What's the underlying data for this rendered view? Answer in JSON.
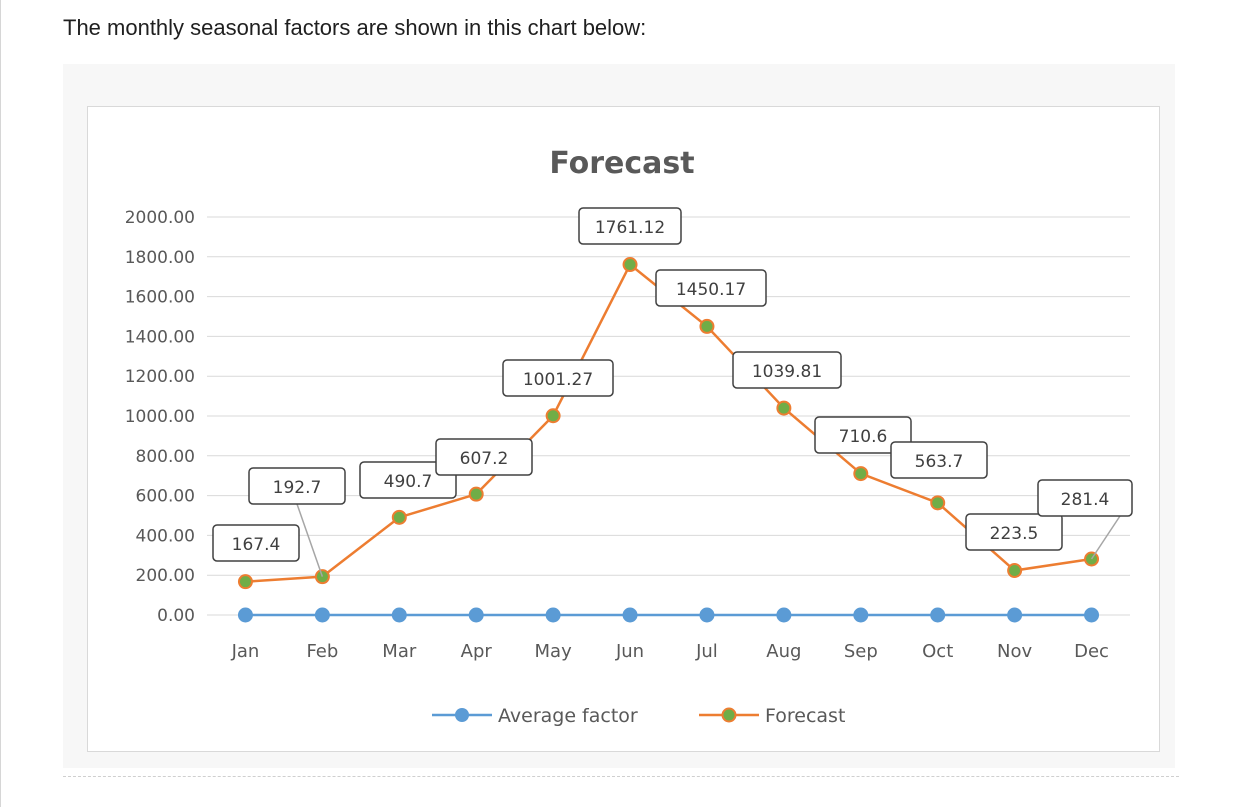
{
  "intro_text": "The monthly seasonal factors are shown in this chart below:",
  "chart_data": {
    "type": "line",
    "title": "Forecast",
    "categories": [
      "Jan",
      "Feb",
      "Mar",
      "Apr",
      "May",
      "Jun",
      "Jul",
      "Aug",
      "Sep",
      "Oct",
      "Nov",
      "Dec"
    ],
    "ylim": [
      0,
      2000
    ],
    "yticks": [
      "2000.00",
      "1800.00",
      "1600.00",
      "1400.00",
      "1200.00",
      "1000.00",
      "800.00",
      "600.00",
      "400.00",
      "200.00",
      "0.00"
    ],
    "grid": true,
    "legend_position": "bottom",
    "series": [
      {
        "name": "Average factor",
        "color": "#5b9bd5",
        "marker_color": "#5b9bd5",
        "values": [
          0,
          0,
          0,
          0,
          0,
          0,
          0,
          0,
          0,
          0,
          0,
          0
        ],
        "data_labels": []
      },
      {
        "name": "Forecast",
        "color": "#ed7d31",
        "marker_color": "#70ad47",
        "values": [
          167.4,
          192.7,
          490.7,
          607.2,
          1001.27,
          1761.12,
          1450.17,
          1039.81,
          710.6,
          563.7,
          223.5,
          281.4
        ],
        "data_labels": [
          "167.4",
          "192.7",
          "490.7",
          "607.2",
          "1001.27",
          "1761.12",
          "1450.17",
          "1039.81",
          "710.6",
          "563.7",
          "223.5",
          "281.4"
        ]
      }
    ]
  }
}
